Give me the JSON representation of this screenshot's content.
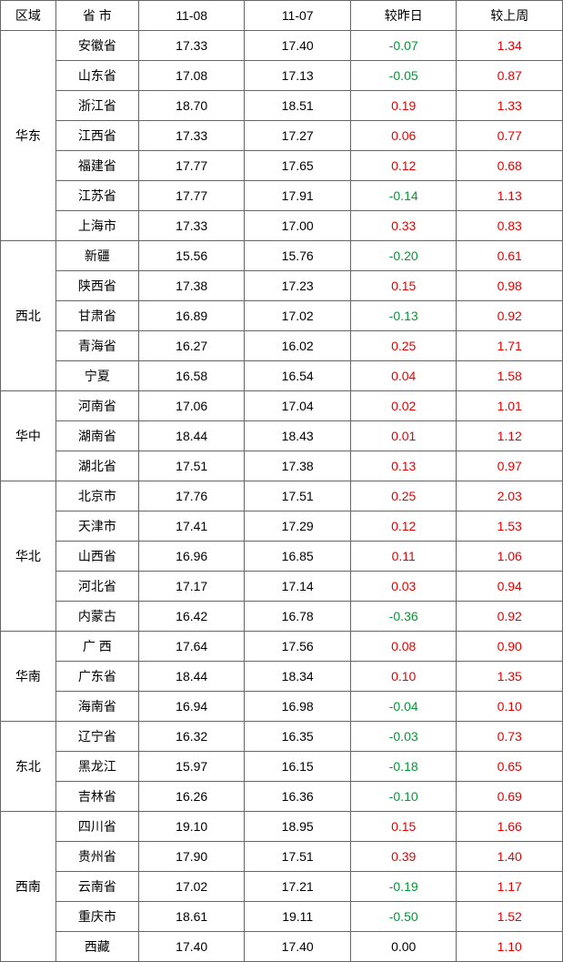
{
  "colors": {
    "positive": "#e60000",
    "negative": "#009933",
    "zero": "#000000",
    "text": "#000000",
    "border": "#666666",
    "bg": "#ffffff"
  },
  "headers": {
    "region": "区域",
    "province": "省 市",
    "d1": "11-08",
    "d2": "11-07",
    "delta_day": "较昨日",
    "delta_week": "较上周"
  },
  "regions": [
    {
      "name": "华东",
      "rows": [
        {
          "province": "安徽省",
          "d1": "17.33",
          "d2": "17.40",
          "dy": "-0.07",
          "dw": "1.34"
        },
        {
          "province": "山东省",
          "d1": "17.08",
          "d2": "17.13",
          "dy": "-0.05",
          "dw": "0.87"
        },
        {
          "province": "浙江省",
          "d1": "18.70",
          "d2": "18.51",
          "dy": "0.19",
          "dw": "1.33"
        },
        {
          "province": "江西省",
          "d1": "17.33",
          "d2": "17.27",
          "dy": "0.06",
          "dw": "0.77"
        },
        {
          "province": "福建省",
          "d1": "17.77",
          "d2": "17.65",
          "dy": "0.12",
          "dw": "0.68"
        },
        {
          "province": "江苏省",
          "d1": "17.77",
          "d2": "17.91",
          "dy": "-0.14",
          "dw": "1.13"
        },
        {
          "province": "上海市",
          "d1": "17.33",
          "d2": "17.00",
          "dy": "0.33",
          "dw": "0.83"
        }
      ]
    },
    {
      "name": "西北",
      "rows": [
        {
          "province": "新疆",
          "d1": "15.56",
          "d2": "15.76",
          "dy": "-0.20",
          "dw": "0.61"
        },
        {
          "province": "陕西省",
          "d1": "17.38",
          "d2": "17.23",
          "dy": "0.15",
          "dw": "0.98"
        },
        {
          "province": "甘肃省",
          "d1": "16.89",
          "d2": "17.02",
          "dy": "-0.13",
          "dw": "0.92"
        },
        {
          "province": "青海省",
          "d1": "16.27",
          "d2": "16.02",
          "dy": "0.25",
          "dw": "1.71"
        },
        {
          "province": "宁夏",
          "d1": "16.58",
          "d2": "16.54",
          "dy": "0.04",
          "dw": "1.58"
        }
      ]
    },
    {
      "name": "华中",
      "rows": [
        {
          "province": "河南省",
          "d1": "17.06",
          "d2": "17.04",
          "dy": "0.02",
          "dw": "1.01"
        },
        {
          "province": "湖南省",
          "d1": "18.44",
          "d2": "18.43",
          "dy": "0.01",
          "dw": "1.12"
        },
        {
          "province": "湖北省",
          "d1": "17.51",
          "d2": "17.38",
          "dy": "0.13",
          "dw": "0.97"
        }
      ]
    },
    {
      "name": "华北",
      "rows": [
        {
          "province": "北京市",
          "d1": "17.76",
          "d2": "17.51",
          "dy": "0.25",
          "dw": "2.03"
        },
        {
          "province": "天津市",
          "d1": "17.41",
          "d2": "17.29",
          "dy": "0.12",
          "dw": "1.53"
        },
        {
          "province": "山西省",
          "d1": "16.96",
          "d2": "16.85",
          "dy": "0.11",
          "dw": "1.06"
        },
        {
          "province": "河北省",
          "d1": "17.17",
          "d2": "17.14",
          "dy": "0.03",
          "dw": "0.94"
        },
        {
          "province": "内蒙古",
          "d1": "16.42",
          "d2": "16.78",
          "dy": "-0.36",
          "dw": "0.92"
        }
      ]
    },
    {
      "name": "华南",
      "rows": [
        {
          "province": "广 西",
          "d1": "17.64",
          "d2": "17.56",
          "dy": "0.08",
          "dw": "0.90"
        },
        {
          "province": "广东省",
          "d1": "18.44",
          "d2": "18.34",
          "dy": "0.10",
          "dw": "1.35"
        },
        {
          "province": "海南省",
          "d1": "16.94",
          "d2": "16.98",
          "dy": "-0.04",
          "dw": "0.10"
        }
      ]
    },
    {
      "name": "东北",
      "rows": [
        {
          "province": "辽宁省",
          "d1": "16.32",
          "d2": "16.35",
          "dy": "-0.03",
          "dw": "0.73"
        },
        {
          "province": "黑龙江",
          "d1": "15.97",
          "d2": "16.15",
          "dy": "-0.18",
          "dw": "0.65"
        },
        {
          "province": "吉林省",
          "d1": "16.26",
          "d2": "16.36",
          "dy": "-0.10",
          "dw": "0.69"
        }
      ]
    },
    {
      "name": "西南",
      "rows": [
        {
          "province": "四川省",
          "d1": "19.10",
          "d2": "18.95",
          "dy": "0.15",
          "dw": "1.66"
        },
        {
          "province": "贵州省",
          "d1": "17.90",
          "d2": "17.51",
          "dy": "0.39",
          "dw": "1.40"
        },
        {
          "province": "云南省",
          "d1": "17.02",
          "d2": "17.21",
          "dy": "-0.19",
          "dw": "1.17"
        },
        {
          "province": "重庆市",
          "d1": "18.61",
          "d2": "19.11",
          "dy": "-0.50",
          "dw": "1.52"
        },
        {
          "province": "西藏",
          "d1": "17.40",
          "d2": "17.40",
          "dy": "0.00",
          "dw": "1.10"
        }
      ]
    }
  ]
}
